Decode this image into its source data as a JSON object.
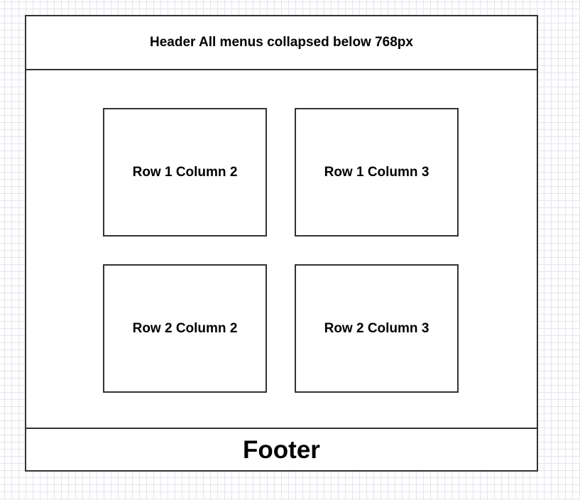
{
  "header": {
    "label": "Header All menus collapsed below 768px"
  },
  "grid": {
    "cells": [
      {
        "label": "Row 1 Column 2"
      },
      {
        "label": "Row 1 Column 3"
      },
      {
        "label": "Row 2 Column 2"
      },
      {
        "label": "Row 2 Column 3"
      }
    ]
  },
  "footer": {
    "label": "Footer"
  }
}
